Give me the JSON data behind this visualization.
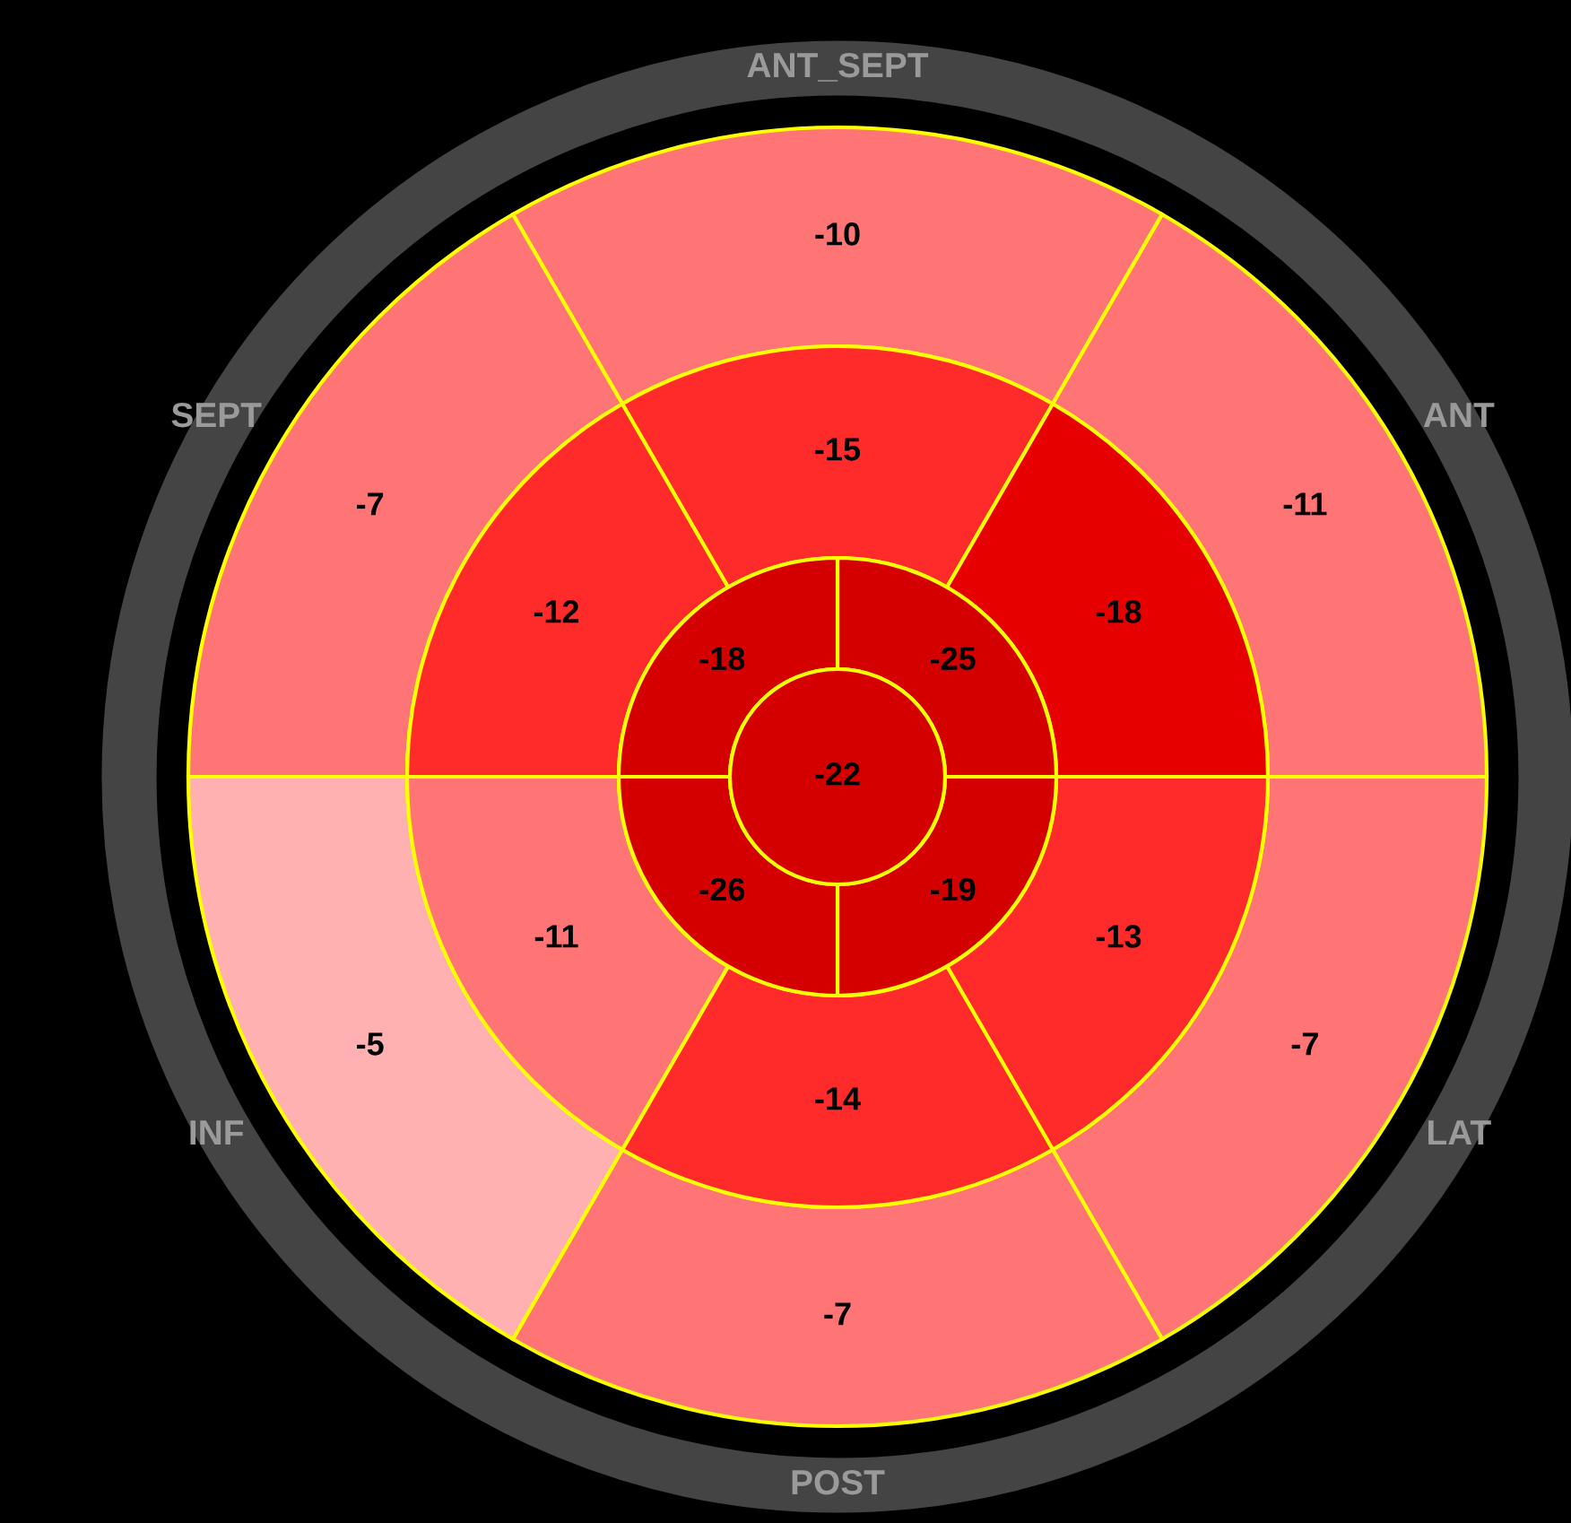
{
  "chart_data": [
    {
      "type": "other",
      "data_labels": true,
      "categories": [
        "ANT_SEPT",
        "ANT",
        "LAT",
        "POST",
        "INF",
        "SEPT"
      ],
      "series": [
        {
          "values": [
            -10,
            -11,
            -7,
            -7,
            -5,
            -7
          ],
          "colors": [
            "#ff7575",
            "#ff7575",
            "#ff7575",
            "#ff7575",
            "#ffb0b0",
            "#ff7575"
          ]
        },
        {
          "values": [
            -15,
            -18,
            -13,
            -14,
            -11,
            -12
          ],
          "colors": [
            "#ff2a2a",
            "#e60000",
            "#ff2a2a",
            "#ff2a2a",
            "#ff7575",
            "#ff2a2a"
          ]
        }
      ]
    },
    {
      "type": "other",
      "data_labels": true,
      "categories": [
        null
      ],
      "values": [
        -25
      ],
      "colors": [
        "#d40000"
      ]
    },
    {
      "type": "other",
      "data_labels": true,
      "categories": [
        null
      ],
      "values": [
        -19
      ],
      "colors": [
        "#d40000"
      ]
    },
    {
      "type": "other",
      "data_labels": true,
      "categories": [
        null
      ],
      "values": [
        -26
      ],
      "colors": [
        "#d40000"
      ]
    },
    {
      "type": "other",
      "data_labels": true,
      "categories": [
        null
      ],
      "values": [
        -18
      ],
      "colors": [
        "#d40000"
      ]
    },
    {
      "type": "other",
      "data_labels": true,
      "categories": [
        null
      ],
      "values": [
        -22
      ],
      "colors": [
        "#d40000"
      ]
    }
  ]
}
